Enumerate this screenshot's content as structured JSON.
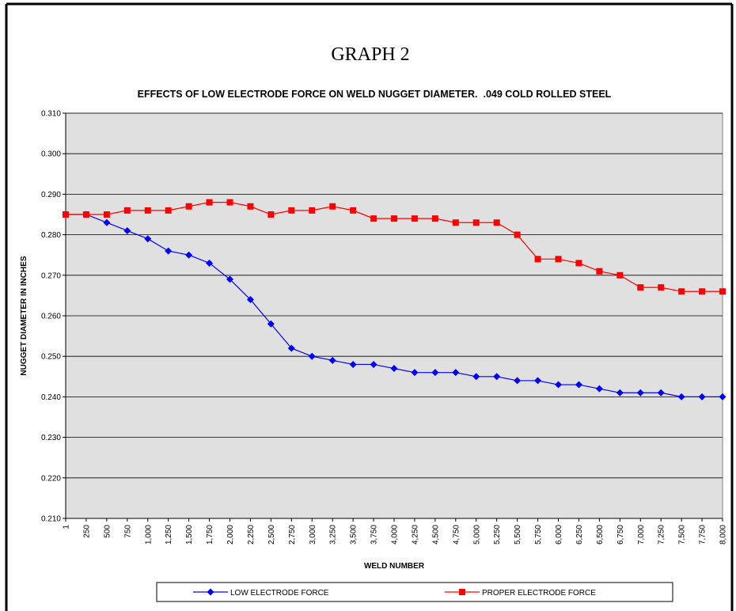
{
  "chart_data": {
    "type": "line",
    "heading": "GRAPH 2",
    "title": "EFFECTS OF LOW ELECTRODE FORCE ON WELD NUGGET DIAMETER.  .049 COLD ROLLED STEEL",
    "x_label": "WELD NUMBER",
    "y_label": "NUGGET DIAMETER IN INCHES",
    "categories": [
      "1",
      "250",
      "500",
      "750",
      "1,000",
      "1,250",
      "1,500",
      "1,750",
      "2,000",
      "2,250",
      "2,500",
      "2,750",
      "3,000",
      "3,250",
      "3,500",
      "3,750",
      "4,000",
      "4,250",
      "4,500",
      "4,750",
      "5,000",
      "5,250",
      "5,500",
      "5,750",
      "6,000",
      "6,250",
      "6,500",
      "6,750",
      "7,000",
      "7,250",
      "7,500",
      "7,750",
      "8,000"
    ],
    "series": [
      {
        "name": "LOW ELECTRODE FORCE",
        "color": "#0000ff",
        "marker": "diamond",
        "values": [
          0.285,
          0.285,
          0.283,
          0.281,
          0.279,
          0.276,
          0.275,
          0.273,
          0.269,
          0.264,
          0.258,
          0.252,
          0.25,
          0.249,
          0.248,
          0.248,
          0.247,
          0.246,
          0.246,
          0.246,
          0.245,
          0.245,
          0.244,
          0.244,
          0.243,
          0.243,
          0.242,
          0.241,
          0.241,
          0.241,
          0.24,
          0.24,
          0.24
        ]
      },
      {
        "name": "PROPER ELECTRODE FORCE",
        "color": "#ff0000",
        "marker": "square",
        "values": [
          0.285,
          0.285,
          0.285,
          0.286,
          0.286,
          0.286,
          0.287,
          0.288,
          0.288,
          0.287,
          0.285,
          0.286,
          0.286,
          0.287,
          0.286,
          0.284,
          0.284,
          0.284,
          0.284,
          0.283,
          0.283,
          0.283,
          0.28,
          0.274,
          0.274,
          0.273,
          0.271,
          0.27,
          0.267,
          0.267,
          0.266,
          0.266,
          0.266
        ]
      }
    ],
    "ylim": [
      0.21,
      0.31
    ],
    "yticks": [
      {
        "value": 0.21,
        "label": "0.210"
      },
      {
        "value": 0.22,
        "label": "0.220"
      },
      {
        "value": 0.23,
        "label": "0.230"
      },
      {
        "value": 0.24,
        "label": "0.240"
      },
      {
        "value": 0.25,
        "label": "0.250"
      },
      {
        "value": 0.26,
        "label": "0.260"
      },
      {
        "value": 0.27,
        "label": "0.270"
      },
      {
        "value": 0.28,
        "label": "0.280"
      },
      {
        "value": 0.29,
        "label": "0.290"
      },
      {
        "value": 0.3,
        "label": "0.300"
      },
      {
        "value": 0.31,
        "label": "0.310"
      }
    ],
    "grid": true,
    "plot_background": "#e0e0e0",
    "legend_position": "bottom"
  }
}
